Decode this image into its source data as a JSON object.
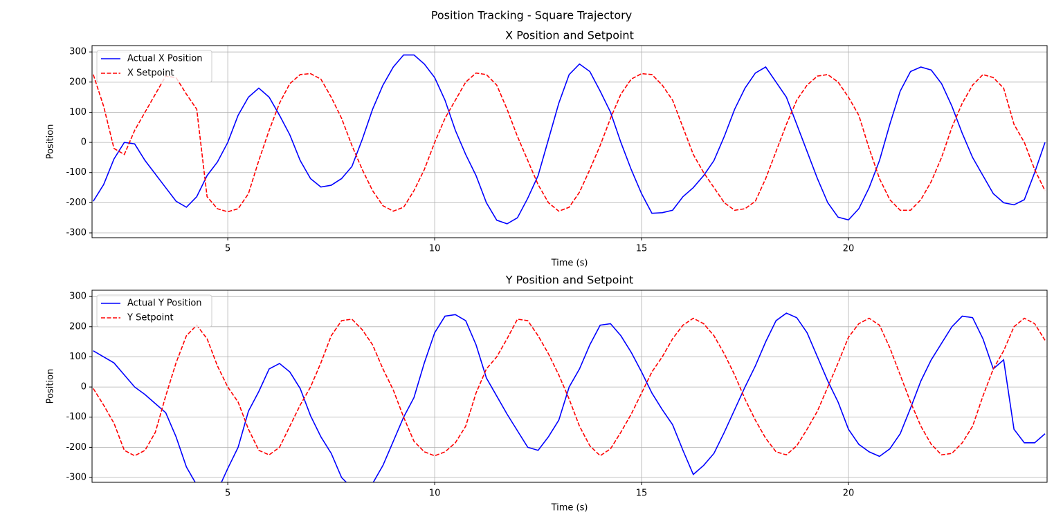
{
  "title": "Position Tracking - Square Trajectory",
  "chart_data": [
    {
      "type": "line",
      "title": "X Position and Setpoint",
      "xlabel": "Time (s)",
      "ylabel": "Position",
      "xlim": [
        1.72,
        24.8
      ],
      "ylim": [
        -316,
        321
      ],
      "xticks": [
        5,
        10,
        15,
        20
      ],
      "yticks": [
        -300,
        -200,
        -100,
        0,
        100,
        200,
        300
      ],
      "grid": true,
      "legend": "upper left",
      "x": [
        1.75,
        2,
        2.25,
        2.5,
        2.75,
        3,
        3.25,
        3.5,
        3.75,
        4,
        4.25,
        4.5,
        4.75,
        5,
        5.25,
        5.5,
        5.75,
        6,
        6.25,
        6.5,
        6.75,
        7,
        7.25,
        7.5,
        7.75,
        8,
        8.25,
        8.5,
        8.75,
        9,
        9.25,
        9.5,
        9.75,
        10,
        10.25,
        10.5,
        10.75,
        11,
        11.25,
        11.5,
        11.75,
        12,
        12.25,
        12.5,
        12.75,
        13,
        13.25,
        13.5,
        13.75,
        14,
        14.25,
        14.5,
        14.75,
        15,
        15.25,
        15.5,
        15.75,
        16,
        16.25,
        16.5,
        16.75,
        17,
        17.25,
        17.5,
        17.75,
        18,
        18.25,
        18.5,
        18.75,
        19,
        19.25,
        19.5,
        19.75,
        20,
        20.25,
        20.5,
        20.75,
        21,
        21.25,
        21.5,
        21.75,
        22,
        22.25,
        22.5,
        22.75,
        23,
        23.25,
        23.5,
        23.75,
        24,
        24.25,
        24.5,
        24.75
      ],
      "series": [
        {
          "name": "Actual X Position",
          "color": "#0000ff",
          "linestyle": "solid",
          "values": [
            -195,
            -140,
            -55,
            0,
            -5,
            -60,
            -105,
            -150,
            -195,
            -215,
            -180,
            -110,
            -65,
            0,
            90,
            150,
            180,
            150,
            90,
            25,
            -60,
            -120,
            -148,
            -142,
            -120,
            -80,
            10,
            110,
            190,
            250,
            290,
            290,
            260,
            215,
            140,
            40,
            -40,
            -110,
            -200,
            -258,
            -270,
            -250,
            -185,
            -110,
            10,
            130,
            225,
            260,
            235,
            170,
            100,
            0,
            -90,
            -170,
            -235,
            -233,
            -225,
            -180,
            -150,
            -110,
            -60,
            20,
            110,
            180,
            230,
            250,
            200,
            150,
            60,
            -30,
            -120,
            -200,
            -248,
            -257,
            -220,
            -150,
            -60,
            60,
            170,
            235,
            250,
            240,
            195,
            120,
            30,
            -50,
            -110,
            -170,
            -200,
            -207,
            -190,
            -100,
            0
          ]
        },
        {
          "name": "X Setpoint",
          "color": "#ff0000",
          "linestyle": "dashed",
          "values": [
            225,
            120,
            -20,
            -40,
            40,
            100,
            160,
            220,
            215,
            160,
            110,
            -180,
            -220,
            -230,
            -220,
            -170,
            -60,
            40,
            130,
            195,
            225,
            228,
            210,
            150,
            80,
            -10,
            -90,
            -160,
            -210,
            -228,
            -215,
            -160,
            -90,
            0,
            80,
            140,
            200,
            230,
            225,
            190,
            110,
            20,
            -60,
            -140,
            -200,
            -228,
            -215,
            -165,
            -90,
            -10,
            80,
            160,
            210,
            228,
            225,
            190,
            140,
            50,
            -40,
            -100,
            -150,
            -200,
            -225,
            -220,
            -195,
            -120,
            -30,
            60,
            140,
            190,
            220,
            225,
            200,
            150,
            90,
            -20,
            -120,
            -190,
            -225,
            -225,
            -190,
            -130,
            -50,
            50,
            130,
            190,
            225,
            215,
            180,
            60,
            0,
            -90,
            -160
          ]
        }
      ]
    },
    {
      "type": "line",
      "title": "Y Position and Setpoint",
      "xlabel": "Time (s)",
      "ylabel": "Position",
      "xlim": [
        1.72,
        24.8
      ],
      "ylim": [
        -316,
        321
      ],
      "xticks": [
        5,
        10,
        15,
        20
      ],
      "yticks": [
        -300,
        -200,
        -100,
        0,
        100,
        200,
        300
      ],
      "grid": true,
      "legend": "upper left",
      "x": [
        1.75,
        2,
        2.25,
        2.5,
        2.75,
        3,
        3.25,
        3.5,
        3.75,
        4,
        4.25,
        4.5,
        4.75,
        5,
        5.25,
        5.5,
        5.75,
        6,
        6.25,
        6.5,
        6.75,
        7,
        7.25,
        7.5,
        7.75,
        8,
        8.25,
        8.5,
        8.75,
        9,
        9.25,
        9.5,
        9.75,
        10,
        10.25,
        10.5,
        10.75,
        11,
        11.25,
        11.5,
        11.75,
        12,
        12.25,
        12.5,
        12.75,
        13,
        13.25,
        13.5,
        13.75,
        14,
        14.25,
        14.5,
        14.75,
        15,
        15.25,
        15.5,
        15.75,
        16,
        16.25,
        16.5,
        16.75,
        17,
        17.25,
        17.5,
        17.75,
        18,
        18.25,
        18.5,
        18.75,
        19,
        19.25,
        19.5,
        19.75,
        20,
        20.25,
        20.5,
        20.75,
        21,
        21.25,
        21.5,
        21.75,
        22,
        22.25,
        22.5,
        22.75,
        23,
        23.25,
        23.5,
        23.75,
        24,
        24.25,
        24.5,
        24.75
      ],
      "series": [
        {
          "name": "Actual Y Position",
          "color": "#0000ff",
          "linestyle": "solid",
          "values": [
            120,
            100,
            80,
            40,
            0,
            -25,
            -55,
            -85,
            -165,
            -265,
            -325,
            -350,
            -345,
            -270,
            -200,
            -80,
            -15,
            60,
            78,
            50,
            -5,
            -95,
            -165,
            -220,
            -300,
            -335,
            -345,
            -320,
            -260,
            -180,
            -100,
            -35,
            80,
            180,
            235,
            240,
            220,
            140,
            30,
            -30,
            -90,
            -145,
            -200,
            -210,
            -165,
            -110,
            0,
            60,
            140,
            205,
            210,
            170,
            115,
            50,
            -20,
            -75,
            -125,
            -210,
            -290,
            -260,
            -220,
            -150,
            -75,
            0,
            70,
            150,
            220,
            245,
            230,
            180,
            100,
            20,
            -50,
            -140,
            -190,
            -215,
            -230,
            -205,
            -155,
            -70,
            20,
            90,
            145,
            200,
            235,
            230,
            160,
            60,
            90,
            -140,
            -185,
            -185,
            -155
          ]
        },
        {
          "name": "Y Setpoint",
          "color": "#ff0000",
          "linestyle": "dashed",
          "values": [
            -5,
            -60,
            -120,
            -210,
            -228,
            -210,
            -150,
            -30,
            80,
            170,
            205,
            160,
            70,
            0,
            -50,
            -140,
            -210,
            -225,
            -200,
            -130,
            -60,
            0,
            80,
            170,
            220,
            225,
            190,
            140,
            60,
            -10,
            -100,
            -180,
            -215,
            -228,
            -215,
            -185,
            -130,
            -20,
            60,
            100,
            160,
            225,
            220,
            170,
            110,
            40,
            -40,
            -130,
            -195,
            -228,
            -205,
            -150,
            -90,
            -20,
            50,
            100,
            160,
            205,
            228,
            210,
            170,
            110,
            40,
            -40,
            -110,
            -170,
            -215,
            -225,
            -195,
            -140,
            -80,
            0,
            80,
            165,
            210,
            228,
            205,
            130,
            40,
            -50,
            -130,
            -190,
            -225,
            -220,
            -185,
            -130,
            -30,
            60,
            120,
            200,
            228,
            210,
            155
          ]
        }
      ]
    }
  ]
}
